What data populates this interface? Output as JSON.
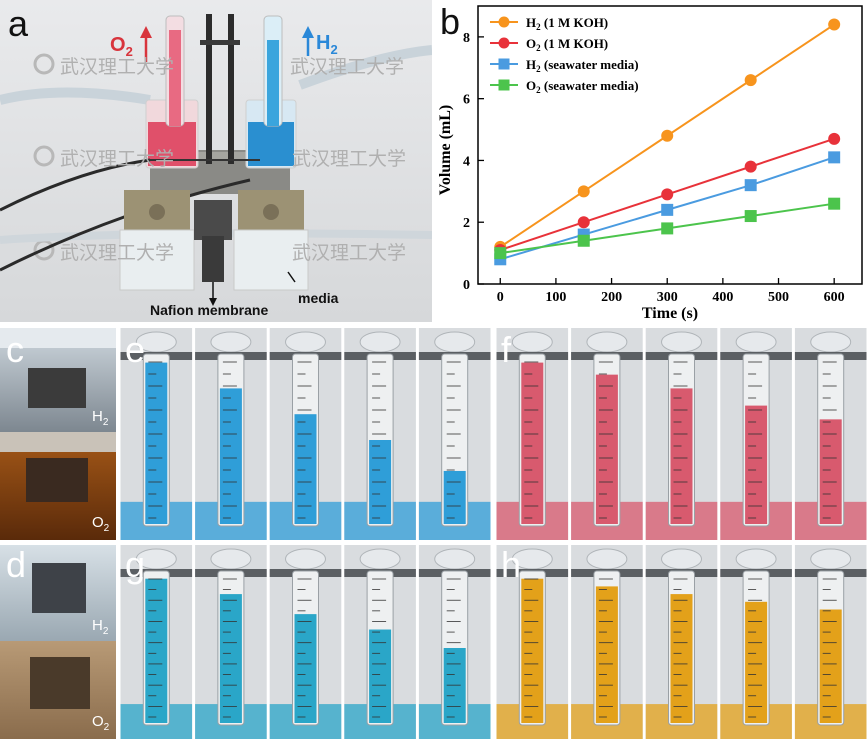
{
  "panel_labels": {
    "a": "a",
    "b": "b",
    "c": "c",
    "d": "d",
    "e": "e",
    "f": "f",
    "g": "g",
    "h": "h"
  },
  "panel_a": {
    "o2_label": "O",
    "o2_sub": "2",
    "h2_label": "H",
    "h2_sub": "2",
    "membrane_label": "Nafion membrane",
    "media_label": "media",
    "watermark": "武汉理工大学",
    "colors": {
      "red_solution": "#e0506a",
      "blue_solution": "#2a8fd0",
      "o2_text": "#d8343c",
      "h2_text": "#2a88d8"
    }
  },
  "panel_c": {
    "h2_label": "H",
    "h2_sub": "2",
    "o2_label": "O",
    "o2_sub": "2"
  },
  "panel_d": {
    "h2_label": "H",
    "h2_sub": "2",
    "o2_label": "O",
    "o2_sub": "2"
  },
  "tube_panels": {
    "e": {
      "liquid": "#2f9ed8",
      "levels": [
        0.95,
        0.8,
        0.65,
        0.5,
        0.32
      ]
    },
    "f": {
      "liquid": "#d85a6e",
      "levels": [
        0.95,
        0.88,
        0.8,
        0.7,
        0.62
      ]
    },
    "g": {
      "liquid": "#2aa6c8",
      "levels": [
        0.95,
        0.85,
        0.72,
        0.62,
        0.5
      ]
    },
    "h": {
      "liquid": "#e3a11a",
      "levels": [
        0.95,
        0.9,
        0.85,
        0.8,
        0.75
      ]
    }
  },
  "chart_data": {
    "type": "line",
    "title": "",
    "xlabel": "Time (s)",
    "ylabel": "Volume (mL)",
    "xlim": [
      -40,
      650
    ],
    "ylim": [
      0,
      9
    ],
    "xticks": [
      0,
      100,
      200,
      300,
      400,
      500,
      600
    ],
    "yticks": [
      0,
      2,
      4,
      6,
      8
    ],
    "series": [
      {
        "name": "H",
        "sub": "2",
        "suffix": " (1 M KOH)",
        "marker": "circle",
        "color": "#f7941d",
        "x": [
          0,
          150,
          300,
          450,
          600
        ],
        "y": [
          1.2,
          3.0,
          4.8,
          6.6,
          8.4
        ]
      },
      {
        "name": "O",
        "sub": "2",
        "suffix": " (1 M KOH)",
        "marker": "circle",
        "color": "#e8323a",
        "x": [
          0,
          150,
          300,
          450,
          600
        ],
        "y": [
          1.1,
          2.0,
          2.9,
          3.8,
          4.7
        ]
      },
      {
        "name": "H",
        "sub": "2",
        "suffix": " (seawater media)",
        "marker": "square",
        "color": "#4a9be0",
        "x": [
          0,
          150,
          300,
          450,
          600
        ],
        "y": [
          0.8,
          1.6,
          2.4,
          3.2,
          4.1
        ]
      },
      {
        "name": "O",
        "sub": "2",
        "suffix": " (seawater media)",
        "marker": "square",
        "color": "#4cc44c",
        "x": [
          0,
          150,
          300,
          450,
          600
        ],
        "y": [
          1.0,
          1.4,
          1.8,
          2.2,
          2.6
        ]
      }
    ],
    "legend_position": "top-left"
  }
}
